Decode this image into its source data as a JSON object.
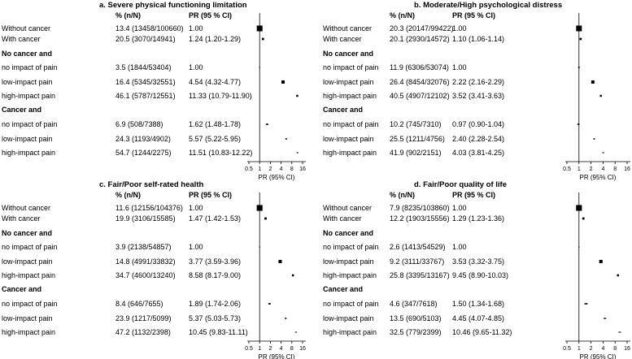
{
  "x_ticks": [
    {
      "value": 0.5,
      "label": "0.5"
    },
    {
      "value": 1,
      "label": "1"
    },
    {
      "value": 2,
      "label": "2"
    },
    {
      "value": 4,
      "label": "4"
    },
    {
      "value": 8,
      "label": "8"
    },
    {
      "value": 16,
      "label": "16"
    }
  ],
  "chart_data": [
    {
      "type": "forest",
      "title": "a. Severe physical functioning limitation",
      "col_pct": "% (n/N)",
      "col_pr": "PR (95 % CI)",
      "xlabel": "PR (95% CI)",
      "xscale": "log2",
      "xlim": [
        0.5,
        16
      ],
      "rows": [
        {
          "label": "Without cancer",
          "pct": "13.4 (13458/100660)",
          "pr_text": "1.00",
          "pr": 1.0,
          "lo": 1.0,
          "hi": 1.0,
          "weight": 100660
        },
        {
          "label": "With cancer",
          "pct": "20.5 (3070/14941)",
          "pr_text": "1.24 (1.20-1.29)",
          "pr": 1.24,
          "lo": 1.2,
          "hi": 1.29,
          "weight": 14941
        },
        {
          "label": "No cancer and",
          "header": true
        },
        {
          "label": "no impact of pain",
          "pct": "3.5 (1844/53404)",
          "pr_text": "1.00",
          "pr": 1.0,
          "lo": 1.0,
          "hi": 1.0,
          "weight": 1844
        },
        {
          "label": "low-impact pain",
          "pct": "16.4 (5345/32551)",
          "pr_text": "4.54 (4.32-4.77)",
          "pr": 4.54,
          "lo": 4.32,
          "hi": 4.77,
          "weight": 32551
        },
        {
          "label": "high-impact pain",
          "pct": "46.1 (5787/12551)",
          "pr_text": "11.33 (10.79-11.90)",
          "pr": 11.33,
          "lo": 10.79,
          "hi": 11.9,
          "weight": 12551
        },
        {
          "label": "Cancer and",
          "header": true
        },
        {
          "label": "no impact of pain",
          "pct": "6.9 (508/7388)",
          "pr_text": "1.62 (1.48-1.78)",
          "pr": 1.62,
          "lo": 1.48,
          "hi": 1.78,
          "weight": 7388
        },
        {
          "label": "low-impact pain",
          "pct": "24.3 (1193/4902)",
          "pr_text": "5.57 (5.22-5.95)",
          "pr": 5.57,
          "lo": 5.22,
          "hi": 5.95,
          "weight": 4902
        },
        {
          "label": "high-impact pain",
          "pct": "54.7 (1244/2275)",
          "pr_text": "11.51 (10.83-12.22)",
          "pr": 11.51,
          "lo": 10.83,
          "hi": 12.22,
          "weight": 2275
        }
      ]
    },
    {
      "type": "forest",
      "title": "b. Moderate/High psychological distress",
      "col_pct": "% (n/N)",
      "col_pr": "PR (95 % CI)",
      "xlabel": "PR (95% CI)",
      "xscale": "log2",
      "xlim": [
        0.5,
        16
      ],
      "rows": [
        {
          "label": "Without cancer",
          "pct": "20.3 (20147/99422)",
          "pr_text": "1.00",
          "pr": 1.0,
          "lo": 1.0,
          "hi": 1.0,
          "weight": 99422
        },
        {
          "label": "With cancer",
          "pct": "20.1 (2930/14572)",
          "pr_text": "1.10 (1.06-1.14)",
          "pr": 1.1,
          "lo": 1.06,
          "hi": 1.14,
          "weight": 14572
        },
        {
          "label": "No cancer and",
          "header": true
        },
        {
          "label": "no impact of pain",
          "pct": "11.9 (6306/53074)",
          "pr_text": "1.00",
          "pr": 1.0,
          "lo": 1.0,
          "hi": 1.0,
          "weight": 6306
        },
        {
          "label": "low-impact pain",
          "pct": "26.4 (8454/32076)",
          "pr_text": "2.22 (2.16-2.29)",
          "pr": 2.22,
          "lo": 2.16,
          "hi": 2.29,
          "weight": 32076
        },
        {
          "label": "high-impact pain",
          "pct": "40.5 (4907/12102)",
          "pr_text": "3.52 (3.41-3.63)",
          "pr": 3.52,
          "lo": 3.41,
          "hi": 3.63,
          "weight": 12102
        },
        {
          "label": "Cancer and",
          "header": true
        },
        {
          "label": "no impact of pain",
          "pct": "10.2 (745/7310)",
          "pr_text": "0.97 (0.90-1.04)",
          "pr": 0.97,
          "lo": 0.9,
          "hi": 1.04,
          "weight": 7310
        },
        {
          "label": "low-impact pain",
          "pct": "25.5 (1211/4756)",
          "pr_text": "2.40 (2.28-2.54)",
          "pr": 2.4,
          "lo": 2.28,
          "hi": 2.54,
          "weight": 4756
        },
        {
          "label": "high-impact pain",
          "pct": "41.9 (902/2151)",
          "pr_text": "4.03 (3.81-4.25)",
          "pr": 4.03,
          "lo": 3.81,
          "hi": 4.25,
          "weight": 2151
        }
      ]
    },
    {
      "type": "forest",
      "title": "c. Fair/Poor self-rated health",
      "col_pct": "% (n/N)",
      "col_pr": "PR (95 % CI)",
      "xlabel": "PR (95% CI)",
      "xscale": "log2",
      "xlim": [
        0.5,
        16
      ],
      "rows": [
        {
          "label": "Without cancer",
          "pct": "11.6 (12156/104376)",
          "pr_text": "1.00",
          "pr": 1.0,
          "lo": 1.0,
          "hi": 1.0,
          "weight": 104376
        },
        {
          "label": "With cancer",
          "pct": "19.9 (3106/15585)",
          "pr_text": "1.47 (1.42-1.53)",
          "pr": 1.47,
          "lo": 1.42,
          "hi": 1.53,
          "weight": 15585
        },
        {
          "label": "No cancer and",
          "header": true
        },
        {
          "label": "no impact of pain",
          "pct": "3.9 (2138/54857)",
          "pr_text": "1.00",
          "pr": 1.0,
          "lo": 1.0,
          "hi": 1.0,
          "weight": 2138
        },
        {
          "label": "low-impact pain",
          "pct": "14.8 (4991/33832)",
          "pr_text": "3.77 (3.59-3.96)",
          "pr": 3.77,
          "lo": 3.59,
          "hi": 3.96,
          "weight": 33832
        },
        {
          "label": "high-impact pain",
          "pct": "34.7 (4600/13240)",
          "pr_text": "8.58 (8.17-9.00)",
          "pr": 8.58,
          "lo": 8.17,
          "hi": 9.0,
          "weight": 13240
        },
        {
          "label": "Cancer and",
          "header": true
        },
        {
          "label": "no impact of pain",
          "pct": "8.4 (646/7655)",
          "pr_text": "1.89 (1.74-2.06)",
          "pr": 1.89,
          "lo": 1.74,
          "hi": 2.06,
          "weight": 7655
        },
        {
          "label": "low-impact pain",
          "pct": "23.9 (1217/5099)",
          "pr_text": "5.37 (5.03-5.73)",
          "pr": 5.37,
          "lo": 5.03,
          "hi": 5.73,
          "weight": 5099
        },
        {
          "label": "high-impact pain",
          "pct": "47.2 (1132/2398)",
          "pr_text": "10.45 (9.83-11.11)",
          "pr": 10.45,
          "lo": 9.83,
          "hi": 11.11,
          "weight": 2398
        }
      ]
    },
    {
      "type": "forest",
      "title": "d. Fair/Poor quality of life",
      "col_pct": "% (n/N)",
      "col_pr": "PR (95 % CI)",
      "xlabel": "PR (95% CI)",
      "xscale": "log2",
      "xlim": [
        0.5,
        16
      ],
      "rows": [
        {
          "label": "Without cancer",
          "pct": "7.9 (8235/103860)",
          "pr_text": "1.00",
          "pr": 1.0,
          "lo": 1.0,
          "hi": 1.0,
          "weight": 103860
        },
        {
          "label": "With cancer",
          "pct": "12.2 (1903/15556)",
          "pr_text": "1.29 (1.23-1.36)",
          "pr": 1.29,
          "lo": 1.23,
          "hi": 1.36,
          "weight": 15556
        },
        {
          "label": "No cancer and",
          "header": true
        },
        {
          "label": "no impact of pain",
          "pct": "2.6 (1413/54529)",
          "pr_text": "1.00",
          "pr": 1.0,
          "lo": 1.0,
          "hi": 1.0,
          "weight": 1413
        },
        {
          "label": "low-impact pain",
          "pct": "9.2 (3111/33767)",
          "pr_text": "3.53 (3.32-3.75)",
          "pr": 3.53,
          "lo": 3.32,
          "hi": 3.75,
          "weight": 33767
        },
        {
          "label": "high-impact pain",
          "pct": "25.8 (3395/13167)",
          "pr_text": "9.45 (8.90-10.03)",
          "pr": 9.45,
          "lo": 8.9,
          "hi": 10.03,
          "weight": 13167
        },
        {
          "label": "Cancer and",
          "header": true
        },
        {
          "label": "no impact of pain",
          "pct": "4.6 (347/7618)",
          "pr_text": "1.50 (1.34-1.68)",
          "pr": 1.5,
          "lo": 1.34,
          "hi": 1.68,
          "weight": 7618
        },
        {
          "label": "low-impact pain",
          "pct": "13.5 (690/5103)",
          "pr_text": "4.45 (4.07-4.85)",
          "pr": 4.45,
          "lo": 4.07,
          "hi": 4.85,
          "weight": 5103
        },
        {
          "label": "high-impact pain",
          "pct": "32.5 (779/2399)",
          "pr_text": "10.46 (9.65-11.32)",
          "pr": 10.46,
          "lo": 9.65,
          "hi": 11.32,
          "weight": 2399
        }
      ]
    }
  ]
}
